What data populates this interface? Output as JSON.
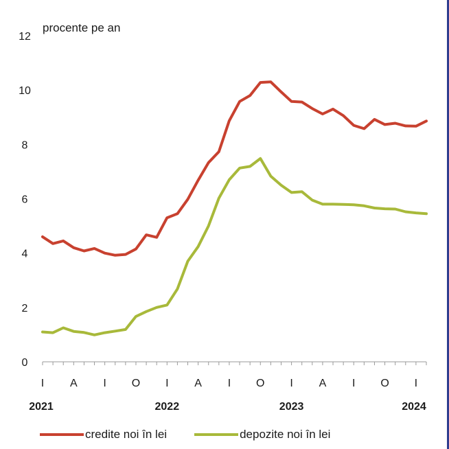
{
  "chart_data": {
    "type": "line",
    "ylabel": "procente pe an",
    "ylim": [
      0,
      12
    ],
    "yticks": [
      0,
      2,
      4,
      6,
      8,
      10,
      12
    ],
    "x_tick_labels": [
      "I",
      "A",
      "I",
      "O",
      "I",
      "A",
      "I",
      "O",
      "I",
      "A",
      "I",
      "O",
      "I"
    ],
    "year_labels": [
      "2021",
      "2022",
      "2023",
      "2024"
    ],
    "x": [
      "2021-01",
      "2021-02",
      "2021-03",
      "2021-04",
      "2021-05",
      "2021-06",
      "2021-07",
      "2021-08",
      "2021-09",
      "2021-10",
      "2021-11",
      "2021-12",
      "2022-01",
      "2022-02",
      "2022-03",
      "2022-04",
      "2022-05",
      "2022-06",
      "2022-07",
      "2022-08",
      "2022-09",
      "2022-10",
      "2022-11",
      "2022-12",
      "2023-01",
      "2023-02",
      "2023-03",
      "2023-04",
      "2023-05",
      "2023-06",
      "2023-07",
      "2023-08",
      "2023-09",
      "2023-10",
      "2023-11",
      "2023-12",
      "2024-01",
      "2024-02"
    ],
    "series": [
      {
        "name": "credite noi în lei",
        "color": "#c8412f",
        "values": [
          4.6,
          4.35,
          4.45,
          4.2,
          4.08,
          4.17,
          4.0,
          3.92,
          3.95,
          4.15,
          4.67,
          4.58,
          5.3,
          5.45,
          5.98,
          6.68,
          7.33,
          7.73,
          8.87,
          9.58,
          9.8,
          10.28,
          10.3,
          9.93,
          9.58,
          9.56,
          9.32,
          9.12,
          9.3,
          9.06,
          8.7,
          8.58,
          8.92,
          8.73,
          8.78,
          8.68,
          8.67,
          8.86
        ]
      },
      {
        "name": "depozite noi în lei",
        "color": "#a8b93a",
        "values": [
          1.1,
          1.07,
          1.25,
          1.12,
          1.08,
          0.99,
          1.07,
          1.13,
          1.19,
          1.67,
          1.85,
          2.0,
          2.09,
          2.68,
          3.7,
          4.24,
          5.0,
          6.02,
          6.7,
          7.13,
          7.19,
          7.48,
          6.83,
          6.5,
          6.23,
          6.26,
          5.95,
          5.8,
          5.8,
          5.79,
          5.78,
          5.74,
          5.66,
          5.63,
          5.62,
          5.52,
          5.48,
          5.45
        ]
      }
    ]
  }
}
